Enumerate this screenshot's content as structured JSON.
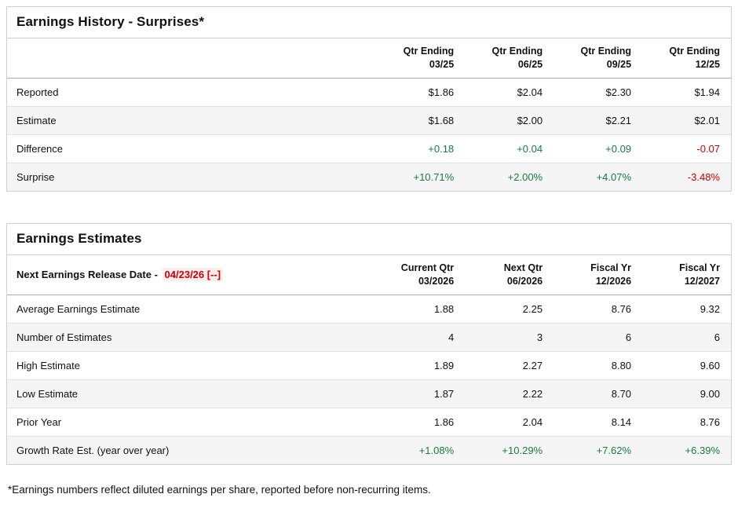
{
  "history": {
    "title": "Earnings History - Surprises*",
    "columns": [
      {
        "line1": "Qtr Ending",
        "line2": "03/25"
      },
      {
        "line1": "Qtr Ending",
        "line2": "06/25"
      },
      {
        "line1": "Qtr Ending",
        "line2": "09/25"
      },
      {
        "line1": "Qtr Ending",
        "line2": "12/25"
      }
    ],
    "rows": [
      {
        "label": "Reported",
        "values": [
          "$1.86",
          "$2.04",
          "$2.30",
          "$1.94"
        ]
      },
      {
        "label": "Estimate",
        "values": [
          "$1.68",
          "$2.00",
          "$2.21",
          "$2.01"
        ]
      },
      {
        "label": "Difference",
        "values": [
          "+0.18",
          "+0.04",
          "+0.09",
          "-0.07"
        ]
      },
      {
        "label": "Surprise",
        "values": [
          "+10.71%",
          "+2.00%",
          "+4.07%",
          "-3.48%"
        ]
      }
    ]
  },
  "estimates": {
    "title": "Earnings Estimates",
    "release_label": "Next Earnings Release Date -",
    "release_date": "04/23/26 [--]",
    "columns": [
      {
        "line1": "Current Qtr",
        "line2": "03/2026"
      },
      {
        "line1": "Next Qtr",
        "line2": "06/2026"
      },
      {
        "line1": "Fiscal Yr",
        "line2": "12/2026"
      },
      {
        "line1": "Fiscal Yr",
        "line2": "12/2027"
      }
    ],
    "rows": [
      {
        "label": "Average Earnings Estimate",
        "values": [
          "1.88",
          "2.25",
          "8.76",
          "9.32"
        ]
      },
      {
        "label": "Number of Estimates",
        "values": [
          "4",
          "3",
          "6",
          "6"
        ]
      },
      {
        "label": "High Estimate",
        "values": [
          "1.89",
          "2.27",
          "8.80",
          "9.60"
        ]
      },
      {
        "label": "Low Estimate",
        "values": [
          "1.87",
          "2.22",
          "8.70",
          "9.00"
        ]
      },
      {
        "label": "Prior Year",
        "values": [
          "1.86",
          "2.04",
          "8.14",
          "8.76"
        ]
      },
      {
        "label": "Growth Rate Est. (year over year)",
        "values": [
          "+1.08%",
          "+10.29%",
          "+7.62%",
          "+6.39%"
        ]
      }
    ]
  },
  "footnote": "*Earnings numbers reflect diluted earnings per share, reported before non-recurring items.",
  "colors": {
    "positive": "#177b41",
    "negative": "#cc0000",
    "release_date": "#cc0000"
  }
}
